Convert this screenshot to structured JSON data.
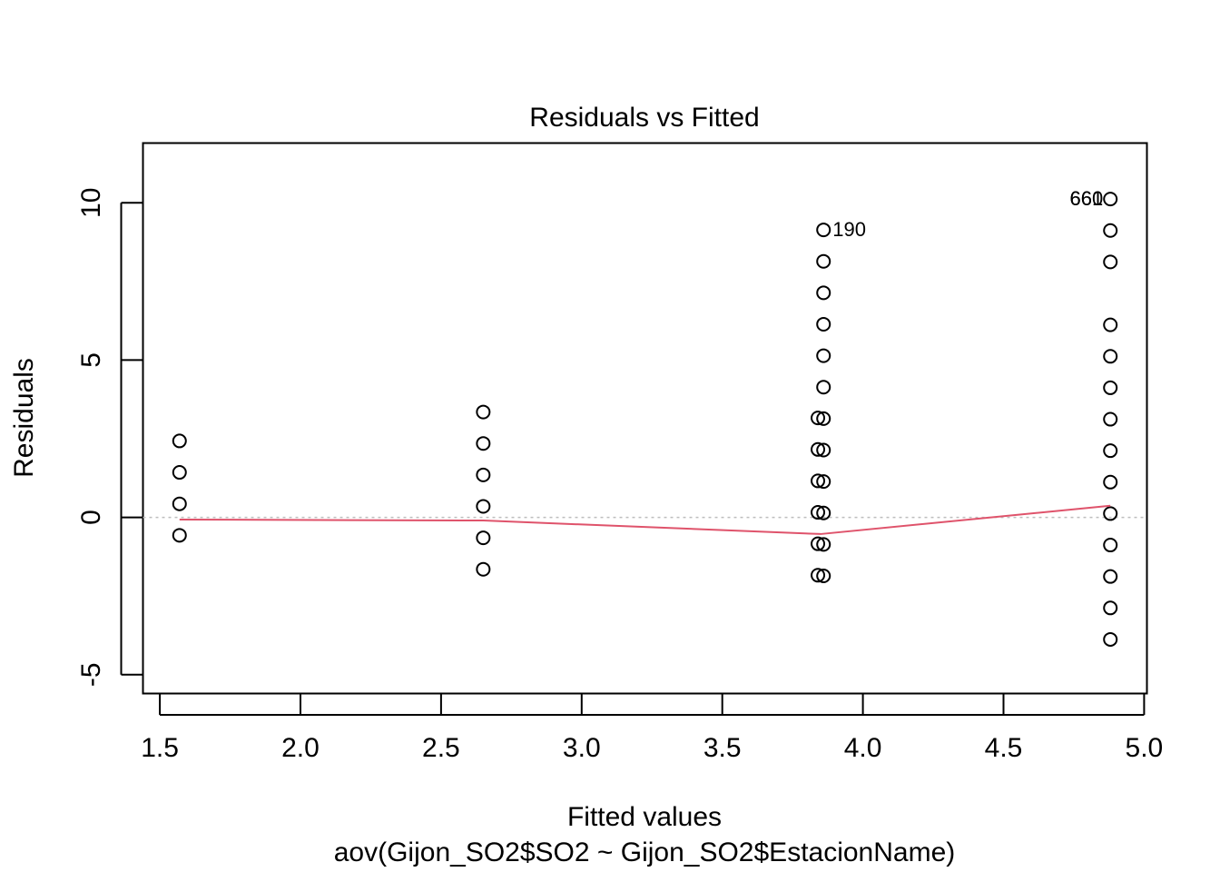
{
  "chart_data": {
    "type": "scatter",
    "title": "Residuals vs Fitted",
    "xlabel": "Fitted values",
    "subtitle": "aov(Gijon_SO2$SO2 ~ Gijon_SO2$EstacionName)",
    "ylabel": "Residuals",
    "xlim": [
      1.44,
      5.01
    ],
    "ylim": [
      -5.6,
      11.9
    ],
    "x_ticks": [
      1.5,
      2.0,
      2.5,
      3.0,
      3.5,
      4.0,
      4.5,
      5.0
    ],
    "x_tick_labels": [
      "1.5",
      "2.0",
      "2.5",
      "3.0",
      "3.5",
      "4.0",
      "4.5",
      "5.0"
    ],
    "y_ticks": [
      -5,
      0,
      5,
      10
    ],
    "y_tick_labels": [
      "-5",
      "0",
      "5",
      "10"
    ],
    "zero_line": 0,
    "groups": [
      {
        "x": 1.57,
        "y": [
          2.43,
          1.43,
          0.43,
          -0.57
        ]
      },
      {
        "x": 2.65,
        "y": [
          3.35,
          2.35,
          1.35,
          0.35,
          -0.65,
          -1.65
        ]
      },
      {
        "x": 3.84,
        "y": [
          3.16,
          2.16,
          1.16,
          0.16,
          -0.84,
          -1.84
        ]
      },
      {
        "x": 3.86,
        "y": [
          9.14,
          8.14,
          7.14,
          6.14,
          5.14,
          4.14,
          3.14,
          2.14,
          1.14,
          0.14,
          -0.86,
          -1.86
        ]
      },
      {
        "x": 4.88,
        "y": [
          10.12,
          9.12,
          8.12,
          6.12,
          5.12,
          4.12,
          3.12,
          2.12,
          1.12,
          0.12,
          -0.88,
          -1.88,
          -2.88,
          -3.88
        ]
      }
    ],
    "smoother": {
      "color": "#DF536B",
      "x": [
        1.57,
        2.65,
        3.85,
        4.88
      ],
      "y": [
        -0.07,
        -0.1,
        -0.53,
        0.37
      ]
    },
    "point_labels": [
      {
        "text": "190",
        "x": 3.86,
        "y": 9.14,
        "side": "right"
      },
      {
        "text": "661",
        "x": 4.88,
        "y": 10.12,
        "side": "left"
      },
      {
        "text": "660",
        "x": 4.88,
        "y": 10.12,
        "side": "left"
      }
    ],
    "colors": {
      "points": "#000000",
      "zero_line": "#BEBEBE"
    }
  }
}
